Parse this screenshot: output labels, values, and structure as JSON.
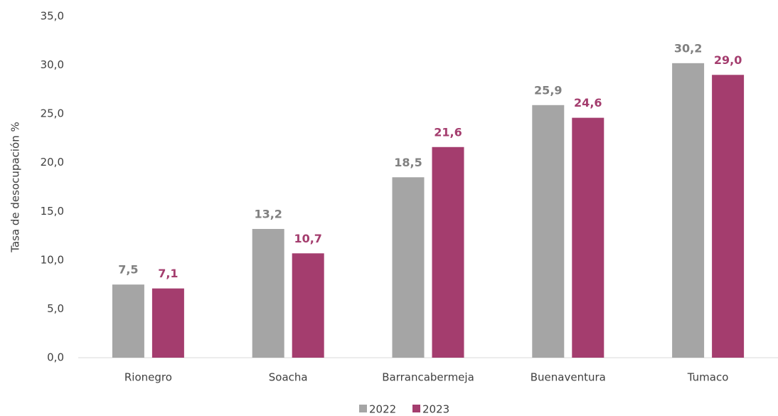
{
  "chart_data": {
    "type": "bar",
    "y_axis_label": "Tasa de desocupación %",
    "categories": [
      "Rionegro",
      "Soacha",
      "Barrancabermeja",
      "Buenaventura",
      "Tumaco"
    ],
    "series": [
      {
        "name": "2022",
        "color": "#a5a5a5",
        "label_color": "#808080",
        "values": [
          7.5,
          13.2,
          18.5,
          25.9,
          30.2
        ],
        "value_labels": [
          "7,5",
          "13,2",
          "18,5",
          "25,9",
          "30,2"
        ]
      },
      {
        "name": "2023",
        "color": "#a43d6e",
        "label_color": "#a43d6e",
        "values": [
          7.1,
          10.7,
          21.6,
          24.6,
          29.0
        ],
        "value_labels": [
          "7,1",
          "10,7",
          "21,6",
          "24,6",
          "29,0"
        ]
      }
    ],
    "ylim": [
      0,
      35
    ],
    "yticks": [
      {
        "value": 0,
        "label": "0,0"
      },
      {
        "value": 5,
        "label": "5,0"
      },
      {
        "value": 10,
        "label": "10,0"
      },
      {
        "value": 15,
        "label": "15,0"
      },
      {
        "value": 20,
        "label": "20,0"
      },
      {
        "value": 25,
        "label": "25,0"
      },
      {
        "value": 30,
        "label": "30,0"
      },
      {
        "value": 35,
        "label": "35,0"
      }
    ],
    "grid": false,
    "legend": "bottom"
  }
}
